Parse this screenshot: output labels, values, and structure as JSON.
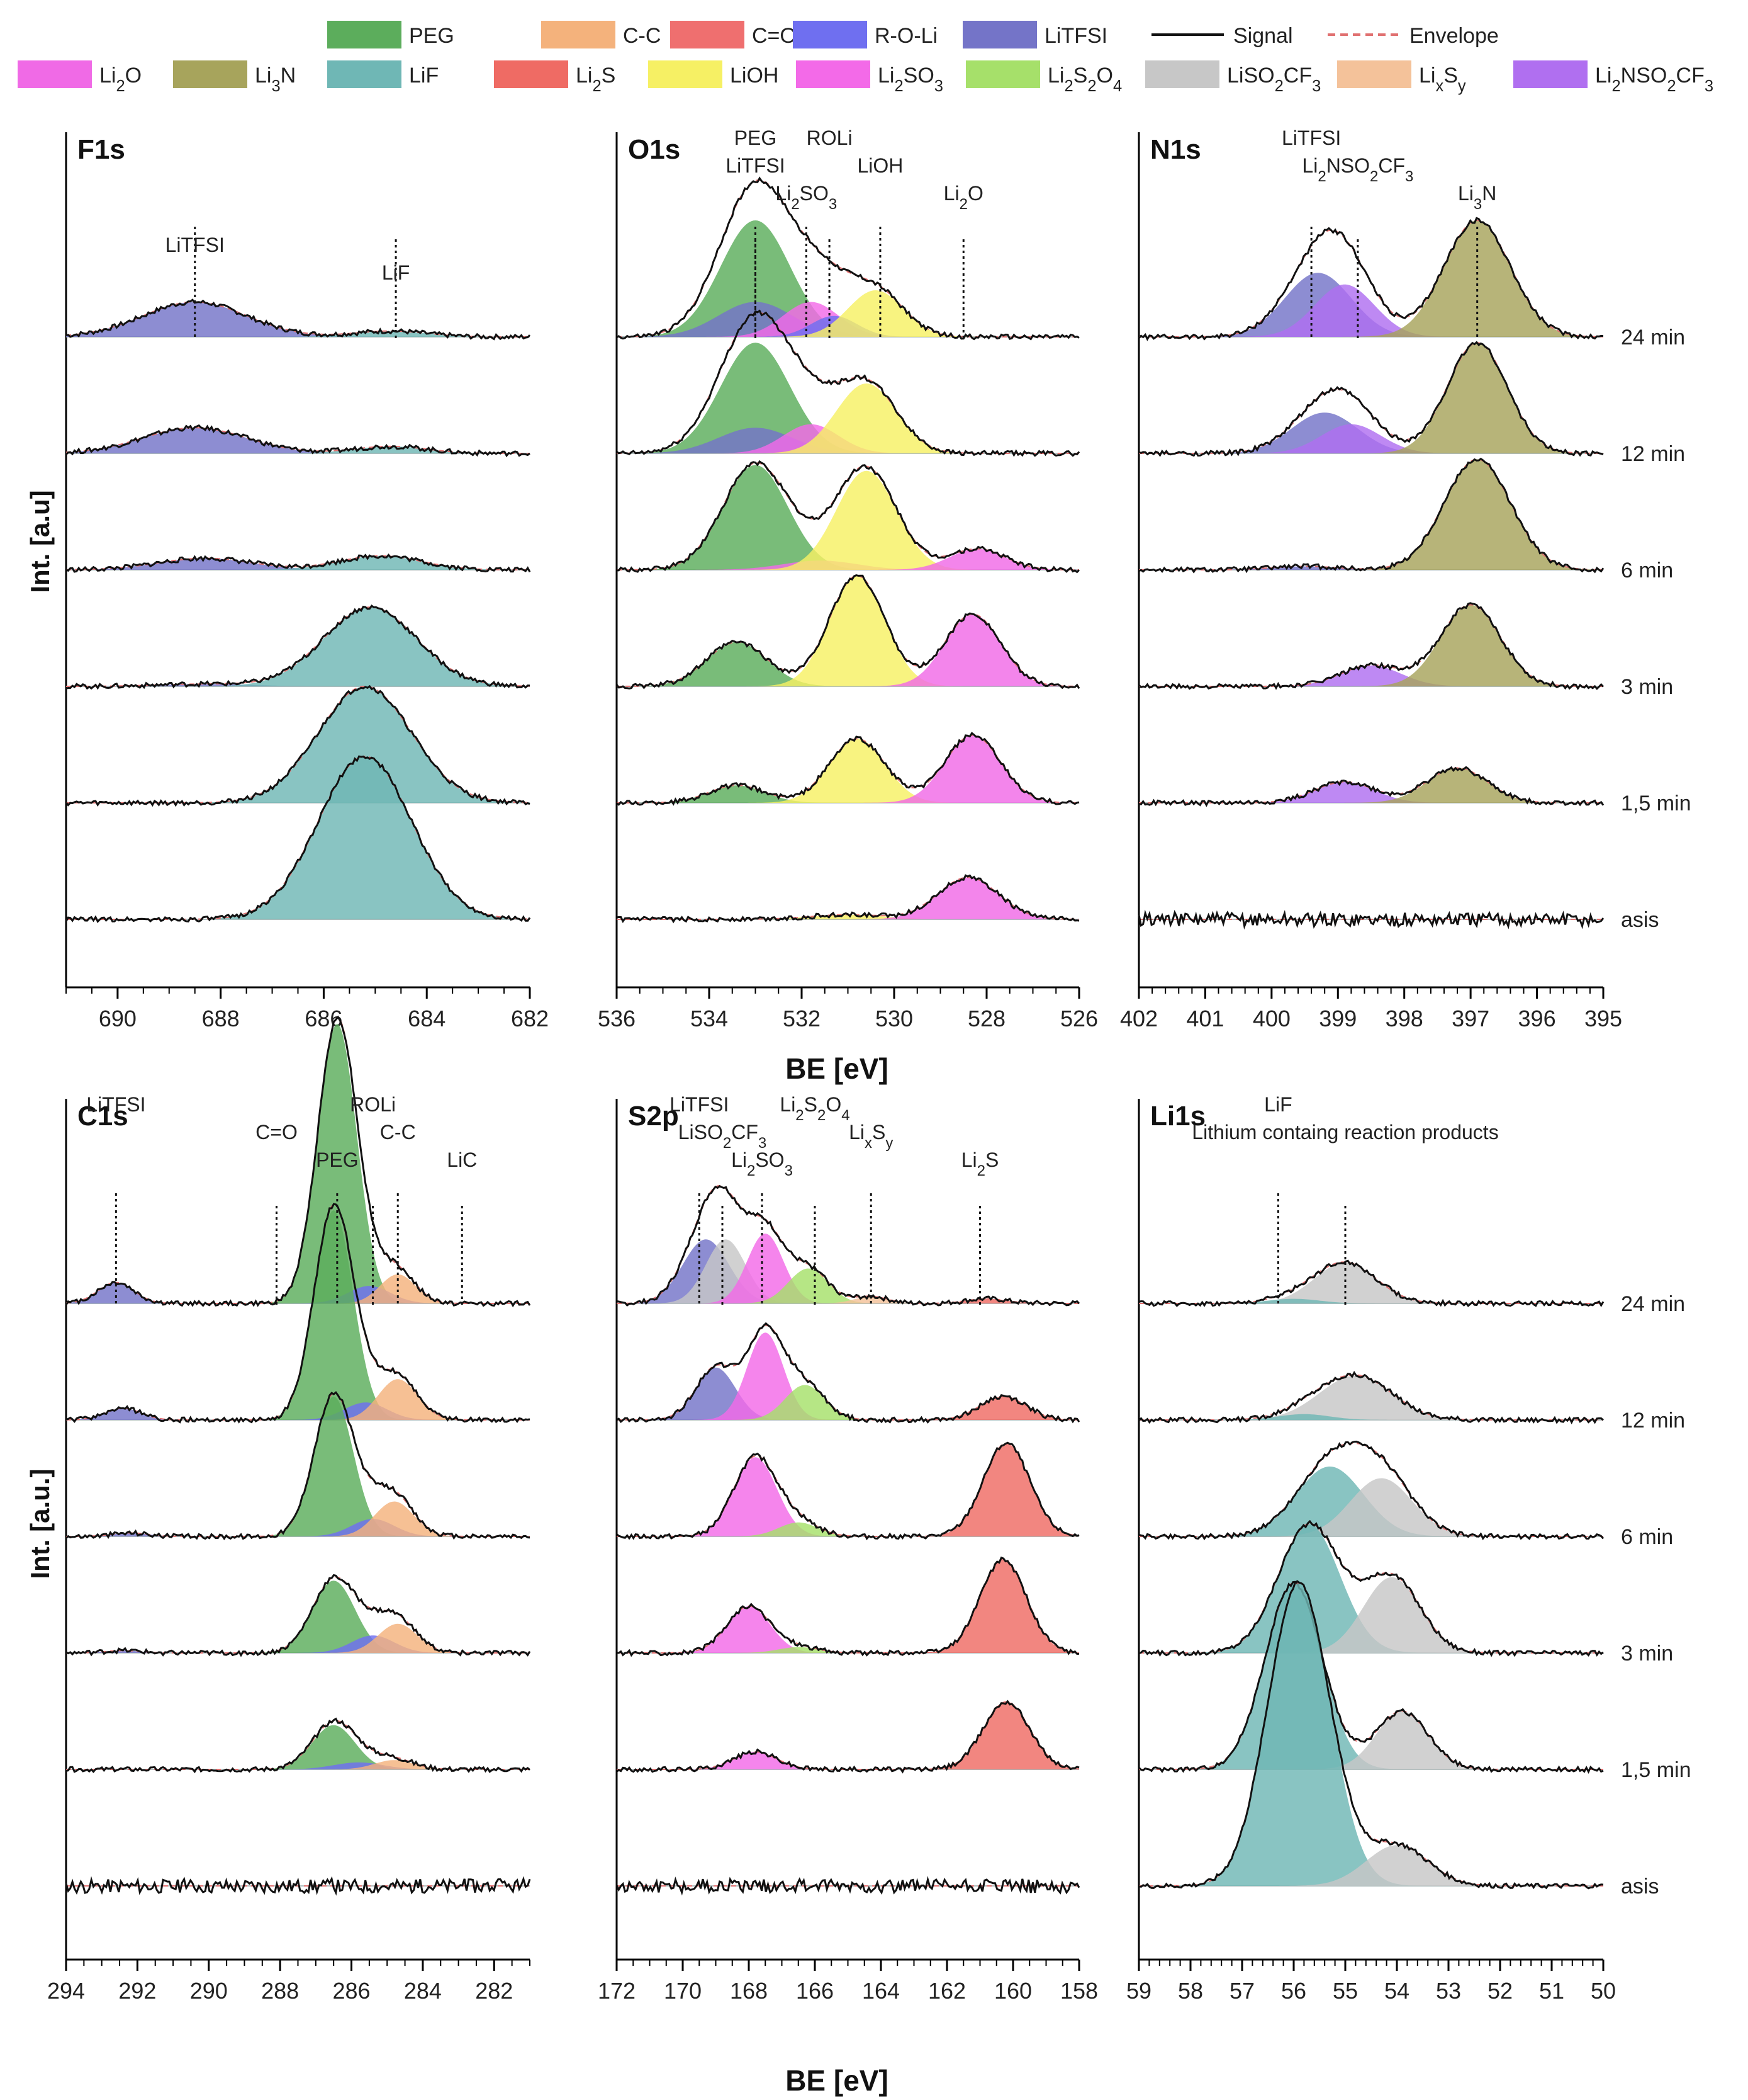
{
  "figure": {
    "y_label_top": "Int. [a.u]",
    "y_label_bottom": "Int. [a.u.]",
    "x_label": "BE [eV]"
  },
  "legend": [
    {
      "name": "PEG",
      "color": "#5cad5c"
    },
    {
      "name": "C-C",
      "color": "#f4b27c"
    },
    {
      "name": "C=O",
      "color": "#ef6f6f"
    },
    {
      "name": "R-O-Li",
      "color": "#6f6ff0"
    },
    {
      "name": "LiTFSI",
      "color": "#7474c8"
    },
    {
      "name": "Signal",
      "color": "#111111",
      "line": true
    },
    {
      "name": "Envelope",
      "color": "#e07070",
      "dash": true
    },
    {
      "name": "Li2O",
      "color": "#f06ae6"
    },
    {
      "name": "Li3N",
      "color": "#a7a45c"
    },
    {
      "name": "LiF",
      "color": "#6fb7b5"
    },
    {
      "name": "Li2S",
      "color": "#ef6b64"
    },
    {
      "name": "LiOH",
      "color": "#f6f064"
    },
    {
      "name": "Li2SO3",
      "color": "#f36ae8"
    },
    {
      "name": "Li2S2O4",
      "color": "#a6e06a"
    },
    {
      "name": "LiSO2CF3",
      "color": "#c7c7c7"
    },
    {
      "name": "LixSy",
      "color": "#f4c29a"
    },
    {
      "name": "Li2NSO2CF3",
      "color": "#b06ff0"
    }
  ],
  "times": [
    "24 min",
    "12 min",
    "6 min",
    "3 min",
    "1,5 min",
    "asis"
  ],
  "chart_data": [
    {
      "type": "area",
      "panel": "F1s",
      "title": "F1s",
      "xlim": [
        691,
        682
      ],
      "ticks": [
        "690",
        "688",
        "686",
        "684",
        "682"
      ],
      "markers": [
        {
          "label": "LiTFSI",
          "x": 688.5
        },
        {
          "label": "LiF",
          "x": 684.6
        }
      ],
      "spectra": [
        {
          "time": "24 min",
          "peaks": [
            {
              "c": "LiTFSI",
              "x": 688.5,
              "h": 0.3,
              "w": 1.0
            },
            {
              "c": "LiF",
              "x": 684.7,
              "h": 0.05,
              "w": 0.7
            }
          ]
        },
        {
          "time": "12 min",
          "peaks": [
            {
              "c": "LiTFSI",
              "x": 688.5,
              "h": 0.22,
              "w": 1.0
            },
            {
              "c": "LiF",
              "x": 684.7,
              "h": 0.06,
              "w": 0.7
            }
          ]
        },
        {
          "time": "6 min",
          "peaks": [
            {
              "c": "LiTFSI",
              "x": 688.3,
              "h": 0.1,
              "w": 0.9
            },
            {
              "c": "LiF",
              "x": 684.9,
              "h": 0.12,
              "w": 0.8
            }
          ]
        },
        {
          "time": "3 min",
          "peaks": [
            {
              "c": "LiTFSI",
              "x": 688.3,
              "h": 0.02,
              "w": 0.9
            },
            {
              "c": "LiF",
              "x": 685.1,
              "h": 0.68,
              "w": 0.9
            }
          ]
        },
        {
          "time": "1,5 min",
          "peaks": [
            {
              "c": "LiF",
              "x": 685.2,
              "h": 1.0,
              "w": 0.9
            }
          ]
        },
        {
          "time": "asis",
          "peaks": [
            {
              "c": "LiF",
              "x": 685.2,
              "h": 1.4,
              "w": 0.9
            }
          ]
        }
      ]
    },
    {
      "type": "area",
      "panel": "O1s",
      "title": "O1s",
      "xlim": [
        536,
        526
      ],
      "ticks": [
        "536",
        "534",
        "532",
        "530",
        "528",
        "526"
      ],
      "markers": [
        {
          "label": "PEG",
          "x": 533.0
        },
        {
          "label": "LiTFSI",
          "x": 533.0
        },
        {
          "label": "Li2SO3",
          "x": 531.9
        },
        {
          "label": "ROLi",
          "x": 531.4
        },
        {
          "label": "LiOH",
          "x": 530.3
        },
        {
          "label": "Li2O",
          "x": 528.5
        }
      ],
      "spectra": [
        {
          "time": "24 min",
          "peaks": [
            {
              "c": "PEG",
              "x": 533.0,
              "h": 1.0,
              "w": 0.75
            },
            {
              "c": "LiTFSI",
              "x": 533.0,
              "h": 0.3,
              "w": 0.8
            },
            {
              "c": "Li2SO3",
              "x": 531.8,
              "h": 0.3,
              "w": 0.6
            },
            {
              "c": "R-O-Li",
              "x": 531.3,
              "h": 0.18,
              "w": 0.5
            },
            {
              "c": "LiOH",
              "x": 530.4,
              "h": 0.4,
              "w": 0.6
            }
          ]
        },
        {
          "time": "12 min",
          "peaks": [
            {
              "c": "PEG",
              "x": 533.0,
              "h": 0.95,
              "w": 0.75
            },
            {
              "c": "LiTFSI",
              "x": 533.0,
              "h": 0.22,
              "w": 0.8
            },
            {
              "c": "Li2SO3",
              "x": 531.8,
              "h": 0.25,
              "w": 0.6
            },
            {
              "c": "LiOH",
              "x": 530.6,
              "h": 0.6,
              "w": 0.65
            }
          ]
        },
        {
          "time": "6 min",
          "peaks": [
            {
              "c": "PEG",
              "x": 533.0,
              "h": 0.9,
              "w": 0.7
            },
            {
              "c": "Li2SO3",
              "x": 531.6,
              "h": 0.08,
              "w": 0.8
            },
            {
              "c": "LiOH",
              "x": 530.6,
              "h": 0.85,
              "w": 0.65
            },
            {
              "c": "Li2O",
              "x": 528.2,
              "h": 0.18,
              "w": 0.6
            }
          ]
        },
        {
          "time": "3 min",
          "peaks": [
            {
              "c": "PEG",
              "x": 533.4,
              "h": 0.38,
              "w": 0.65
            },
            {
              "c": "LiOH",
              "x": 530.8,
              "h": 0.95,
              "w": 0.6
            },
            {
              "c": "Li2O",
              "x": 528.3,
              "h": 0.62,
              "w": 0.6
            }
          ]
        },
        {
          "time": "1,5 min",
          "peaks": [
            {
              "c": "PEG",
              "x": 533.4,
              "h": 0.15,
              "w": 0.6
            },
            {
              "c": "LiOH",
              "x": 530.8,
              "h": 0.55,
              "w": 0.6
            },
            {
              "c": "Li2O",
              "x": 528.3,
              "h": 0.58,
              "w": 0.6
            }
          ]
        },
        {
          "time": "asis",
          "peaks": [
            {
              "c": "LiOH",
              "x": 531.0,
              "h": 0.04,
              "w": 0.8
            },
            {
              "c": "Li2O",
              "x": 528.4,
              "h": 0.36,
              "w": 0.65
            }
          ]
        }
      ]
    },
    {
      "type": "area",
      "panel": "N1s",
      "title": "N1s",
      "xlim": [
        402,
        395
      ],
      "ticks": [
        "402",
        "401",
        "400",
        "399",
        "398",
        "397",
        "396",
        "395"
      ],
      "markers": [
        {
          "label": "LiTFSI",
          "x": 399.4
        },
        {
          "label": "Li2NSO2CF3",
          "x": 398.7
        },
        {
          "label": "Li3N",
          "x": 396.9
        }
      ],
      "spectra": [
        {
          "time": "24 min",
          "peaks": [
            {
              "c": "LiTFSI",
              "x": 399.3,
              "h": 0.55,
              "w": 0.5
            },
            {
              "c": "Li2NSO2CF3",
              "x": 398.9,
              "h": 0.45,
              "w": 0.45
            },
            {
              "c": "Li3N",
              "x": 396.9,
              "h": 1.0,
              "w": 0.5
            }
          ]
        },
        {
          "time": "12 min",
          "peaks": [
            {
              "c": "LiTFSI",
              "x": 399.2,
              "h": 0.35,
              "w": 0.5
            },
            {
              "c": "Li2NSO2CF3",
              "x": 398.8,
              "h": 0.25,
              "w": 0.45
            },
            {
              "c": "Li3N",
              "x": 396.9,
              "h": 0.95,
              "w": 0.45
            }
          ]
        },
        {
          "time": "6 min",
          "peaks": [
            {
              "c": "LiTFSI",
              "x": 399.5,
              "h": 0.03,
              "w": 0.5
            },
            {
              "c": "Li3N",
              "x": 396.9,
              "h": 0.95,
              "w": 0.5
            }
          ]
        },
        {
          "time": "3 min",
          "peaks": [
            {
              "c": "Li2NSO2CF3",
              "x": 398.5,
              "h": 0.18,
              "w": 0.45
            },
            {
              "c": "Li3N",
              "x": 397.0,
              "h": 0.7,
              "w": 0.45
            }
          ]
        },
        {
          "time": "1,5 min",
          "peaks": [
            {
              "c": "Li2NSO2CF3",
              "x": 398.9,
              "h": 0.18,
              "w": 0.45
            },
            {
              "c": "Li3N",
              "x": 397.2,
              "h": 0.3,
              "w": 0.45
            }
          ]
        },
        {
          "time": "asis",
          "peaks": []
        }
      ]
    },
    {
      "type": "area",
      "panel": "C1s",
      "title": "C1s",
      "xlim": [
        294,
        281
      ],
      "ticks": [
        "294",
        "292",
        "290",
        "288",
        "286",
        "284",
        "282"
      ],
      "markers": [
        {
          "label": "LiTFSI",
          "x": 292.6
        },
        {
          "label": "C=O",
          "x": 288.1
        },
        {
          "label": "PEG",
          "x": 286.4
        },
        {
          "label": "ROLi",
          "x": 285.4
        },
        {
          "label": "C-C",
          "x": 284.7
        },
        {
          "label": "LiC",
          "x": 282.9
        }
      ],
      "spectra": [
        {
          "time": "24 min",
          "peaks": [
            {
              "c": "LiTFSI",
              "x": 292.6,
              "h": 0.18,
              "w": 0.5
            },
            {
              "c": "PEG",
              "x": 286.4,
              "h": 2.4,
              "w": 0.55
            },
            {
              "c": "R-O-Li",
              "x": 285.5,
              "h": 0.15,
              "w": 0.6
            },
            {
              "c": "C-C",
              "x": 284.7,
              "h": 0.25,
              "w": 0.5
            }
          ]
        },
        {
          "time": "12 min",
          "peaks": [
            {
              "c": "LiTFSI",
              "x": 292.4,
              "h": 0.1,
              "w": 0.5
            },
            {
              "c": "PEG",
              "x": 286.5,
              "h": 1.8,
              "w": 0.55
            },
            {
              "c": "R-O-Li",
              "x": 285.6,
              "h": 0.15,
              "w": 0.6
            },
            {
              "c": "C-C",
              "x": 284.7,
              "h": 0.35,
              "w": 0.55
            }
          ]
        },
        {
          "time": "6 min",
          "peaks": [
            {
              "c": "LiTFSI",
              "x": 292.2,
              "h": 0.03,
              "w": 0.5
            },
            {
              "c": "PEG",
              "x": 286.5,
              "h": 1.2,
              "w": 0.55
            },
            {
              "c": "R-O-Li",
              "x": 285.4,
              "h": 0.15,
              "w": 0.6
            },
            {
              "c": "C-C",
              "x": 284.8,
              "h": 0.3,
              "w": 0.55
            }
          ]
        },
        {
          "time": "3 min",
          "peaks": [
            {
              "c": "LiTFSI",
              "x": 292.4,
              "h": 0.02,
              "w": 0.5
            },
            {
              "c": "PEG",
              "x": 286.5,
              "h": 0.62,
              "w": 0.6
            },
            {
              "c": "R-O-Li",
              "x": 285.4,
              "h": 0.15,
              "w": 0.6
            },
            {
              "c": "C-C",
              "x": 284.7,
              "h": 0.25,
              "w": 0.55
            }
          ]
        },
        {
          "time": "1,5 min",
          "peaks": [
            {
              "c": "PEG",
              "x": 286.5,
              "h": 0.38,
              "w": 0.6
            },
            {
              "c": "R-O-Li",
              "x": 285.8,
              "h": 0.06,
              "w": 0.7
            },
            {
              "c": "C-C",
              "x": 284.8,
              "h": 0.08,
              "w": 0.55
            }
          ]
        },
        {
          "time": "asis",
          "peaks": []
        }
      ]
    },
    {
      "type": "area",
      "panel": "S2p",
      "title": "S2p",
      "xlim": [
        172,
        158
      ],
      "ticks": [
        "172",
        "170",
        "168",
        "166",
        "164",
        "162",
        "160",
        "158"
      ],
      "markers": [
        {
          "label": "LiTFSI",
          "x": 169.5
        },
        {
          "label": "LiSO2CF3",
          "x": 168.8
        },
        {
          "label": "Li2SO3",
          "x": 167.6
        },
        {
          "label": "Li2S2O4",
          "x": 166.0
        },
        {
          "label": "LixSy",
          "x": 164.3
        },
        {
          "label": "Li2S",
          "x": 161.0
        }
      ],
      "spectra": [
        {
          "time": "24 min",
          "peaks": [
            {
              "c": "LiTFSI",
              "x": 169.3,
              "h": 0.55,
              "w": 0.7
            },
            {
              "c": "LiSO2CF3",
              "x": 168.7,
              "h": 0.55,
              "w": 0.6
            },
            {
              "c": "Li2SO3",
              "x": 167.5,
              "h": 0.6,
              "w": 0.55
            },
            {
              "c": "Li2S2O4",
              "x": 166.2,
              "h": 0.3,
              "w": 0.6
            },
            {
              "c": "LixSy",
              "x": 164.3,
              "h": 0.06,
              "w": 0.5
            },
            {
              "c": "Li2S",
              "x": 160.8,
              "h": 0.04,
              "w": 0.6
            }
          ]
        },
        {
          "time": "12 min",
          "peaks": [
            {
              "c": "LiTFSI",
              "x": 169.0,
              "h": 0.45,
              "w": 0.6
            },
            {
              "c": "Li2SO3",
              "x": 167.5,
              "h": 0.75,
              "w": 0.55
            },
            {
              "c": "Li2S2O4",
              "x": 166.3,
              "h": 0.3,
              "w": 0.6
            },
            {
              "c": "Li2S",
              "x": 160.3,
              "h": 0.2,
              "w": 0.7
            }
          ]
        },
        {
          "time": "6 min",
          "peaks": [
            {
              "c": "Li2SO3",
              "x": 167.8,
              "h": 0.68,
              "w": 0.65
            },
            {
              "c": "Li2S2O4",
              "x": 166.5,
              "h": 0.12,
              "w": 0.6
            },
            {
              "c": "Li2S",
              "x": 160.2,
              "h": 0.8,
              "w": 0.7
            }
          ]
        },
        {
          "time": "3 min",
          "peaks": [
            {
              "c": "Li2SO3",
              "x": 168.0,
              "h": 0.4,
              "w": 0.65
            },
            {
              "c": "Li2S2O4",
              "x": 166.5,
              "h": 0.05,
              "w": 0.6
            },
            {
              "c": "Li2S",
              "x": 160.3,
              "h": 0.8,
              "w": 0.7
            }
          ]
        },
        {
          "time": "1,5 min",
          "peaks": [
            {
              "c": "Li2SO3",
              "x": 167.8,
              "h": 0.15,
              "w": 0.65
            },
            {
              "c": "Li2S",
              "x": 160.2,
              "h": 0.58,
              "w": 0.7
            }
          ]
        },
        {
          "time": "asis",
          "peaks": []
        }
      ]
    },
    {
      "type": "area",
      "panel": "Li1s",
      "title": "Li1s",
      "xlim": [
        59,
        50
      ],
      "ticks": [
        "59",
        "58",
        "57",
        "56",
        "55",
        "54",
        "53",
        "52",
        "51",
        "50"
      ],
      "markers": [
        {
          "label": "LiF",
          "x": 56.3
        },
        {
          "label": "Lithium containg reaction products",
          "x": 55.0
        }
      ],
      "spectra": [
        {
          "time": "24 min",
          "peaks": [
            {
              "c": "LiSO2CF3",
              "x": 55.0,
              "h": 0.35,
              "w": 0.6
            },
            {
              "c": "LiF",
              "x": 56.0,
              "h": 0.04,
              "w": 0.5
            }
          ]
        },
        {
          "time": "12 min",
          "peaks": [
            {
              "c": "LiSO2CF3",
              "x": 54.8,
              "h": 0.38,
              "w": 0.7
            },
            {
              "c": "LiF",
              "x": 55.8,
              "h": 0.05,
              "w": 0.5
            }
          ]
        },
        {
          "time": "6 min",
          "peaks": [
            {
              "c": "LiF",
              "x": 55.3,
              "h": 0.6,
              "w": 0.65
            },
            {
              "c": "LiSO2CF3",
              "x": 54.3,
              "h": 0.5,
              "w": 0.6
            }
          ]
        },
        {
          "time": "3 min",
          "peaks": [
            {
              "c": "LiF",
              "x": 55.7,
              "h": 1.1,
              "w": 0.6
            },
            {
              "c": "LiSO2CF3",
              "x": 54.1,
              "h": 0.65,
              "w": 0.55
            }
          ]
        },
        {
          "time": "1,5 min",
          "peaks": [
            {
              "c": "LiF",
              "x": 56.0,
              "h": 1.6,
              "w": 0.55
            },
            {
              "c": "LiSO2CF3",
              "x": 53.9,
              "h": 0.5,
              "w": 0.5
            }
          ]
        },
        {
          "time": "asis",
          "peaks": [
            {
              "c": "LiF",
              "x": 55.9,
              "h": 2.6,
              "w": 0.6
            },
            {
              "c": "LiSO2CF3",
              "x": 54.0,
              "h": 0.35,
              "w": 0.6
            }
          ]
        }
      ]
    }
  ]
}
